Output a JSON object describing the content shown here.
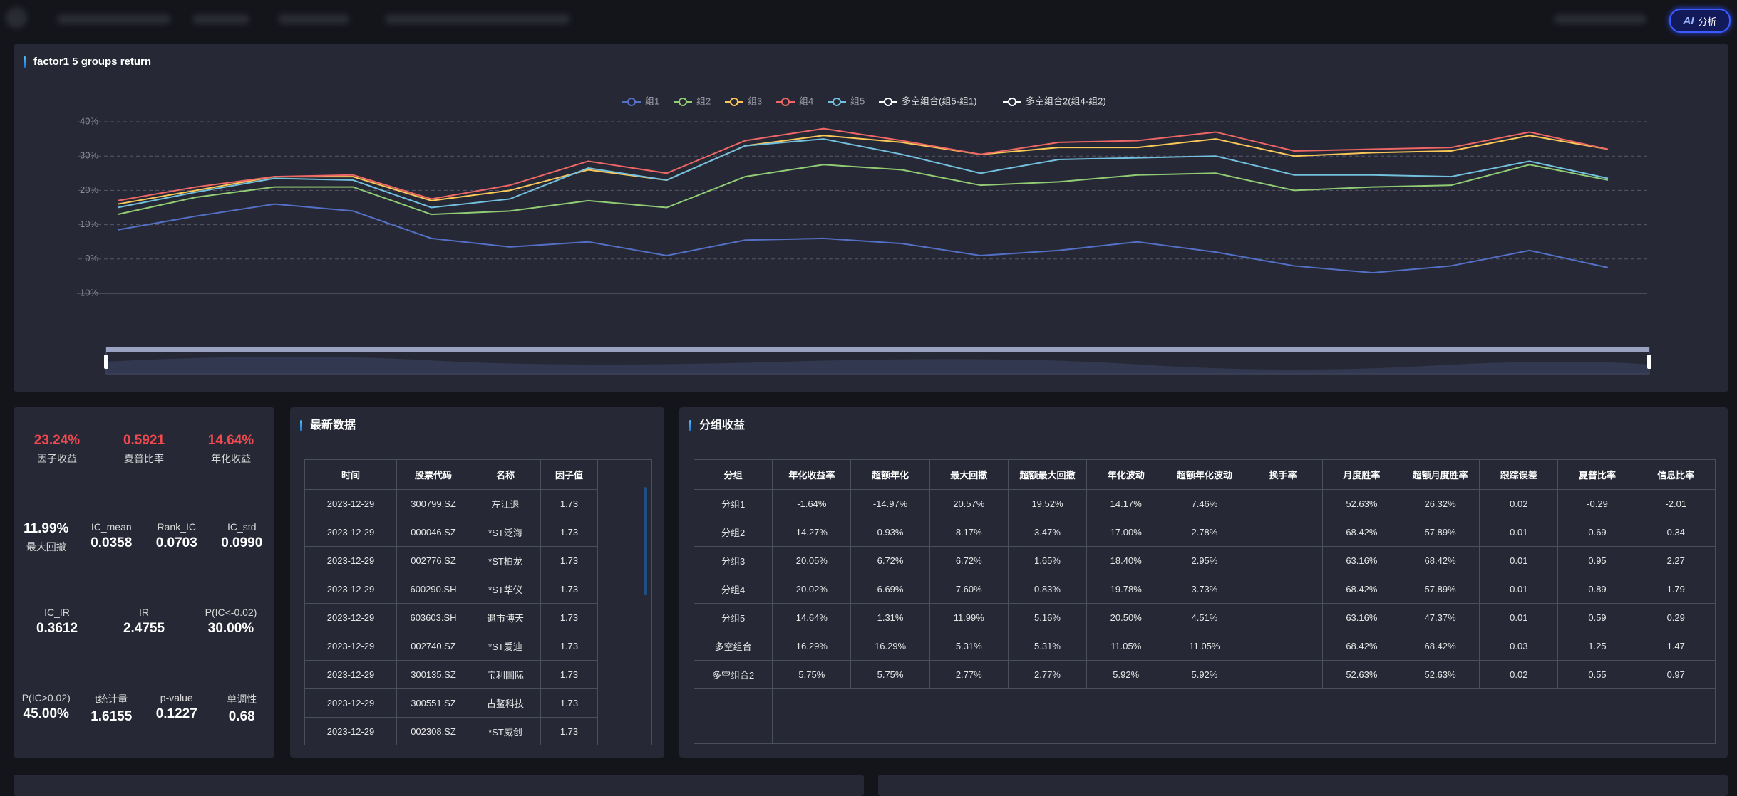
{
  "header": {
    "ai_icon": "AI",
    "ai_button": "分析"
  },
  "chart_data": {
    "type": "line",
    "title": "factor1 5 groups return",
    "categories": [
      null,
      null,
      null,
      null,
      null,
      null,
      null,
      null,
      null,
      null,
      null,
      null,
      null,
      null,
      null,
      null,
      null,
      null,
      null,
      null
    ],
    "series": [
      {
        "name": "组1",
        "color": "#5470c6",
        "values": [
          8.5,
          12.5,
          16,
          14,
          6,
          3.5,
          5,
          1,
          5.5,
          6,
          4.5,
          1,
          2.5,
          5,
          2,
          -2,
          -4,
          -2,
          2.5,
          -2.5
        ]
      },
      {
        "name": "组2",
        "color": "#91cc75",
        "values": [
          13,
          18,
          21,
          21,
          13,
          14,
          17,
          15,
          24,
          27.5,
          26,
          21.5,
          22.5,
          24.5,
          25,
          20,
          21,
          21.5,
          27.5,
          23
        ]
      },
      {
        "name": "组3",
        "color": "#fac858",
        "values": [
          16,
          20,
          24,
          24,
          17,
          20,
          26,
          23,
          33,
          36,
          34,
          30.5,
          32.5,
          32.5,
          35,
          30,
          31,
          31.5,
          36,
          32
        ]
      },
      {
        "name": "组4",
        "color": "#ee6666",
        "values": [
          17,
          21,
          24,
          24.5,
          17.5,
          21.5,
          28.5,
          25,
          34.5,
          38,
          34.5,
          30.5,
          34,
          34.5,
          37,
          31.5,
          32,
          32.5,
          37,
          32
        ]
      },
      {
        "name": "组5",
        "color": "#73c0de",
        "values": [
          15,
          19.5,
          23.5,
          23,
          15,
          17.5,
          26.5,
          23,
          33,
          35,
          30.5,
          25,
          29,
          29.5,
          30,
          24.5,
          24.5,
          24,
          28.5,
          23.5
        ]
      }
    ],
    "legend_extra": [
      {
        "name": "多空组合(组5-组1)",
        "color": "#ffffff"
      },
      {
        "name": "多空组合2(组4-组2)",
        "color": "#ffffff"
      }
    ],
    "ylim": [
      -10,
      40
    ],
    "yticks": [
      {
        "value": -10,
        "label": "-10%"
      },
      {
        "value": 0,
        "label": "0%"
      },
      {
        "value": 10,
        "label": "10%"
      },
      {
        "value": 20,
        "label": "20%"
      },
      {
        "value": 30,
        "label": "30%"
      },
      {
        "value": 40,
        "label": "40%"
      }
    ],
    "grid": true
  },
  "stats": {
    "rows": [
      [
        {
          "value": "23.24%",
          "label": "因子收益",
          "highlight": true,
          "value_first": true
        },
        {
          "value": "0.5921",
          "label": "夏普比率",
          "highlight": true,
          "value_first": true
        },
        {
          "value": "14.64%",
          "label": "年化收益",
          "highlight": true,
          "value_first": true
        }
      ],
      [
        {
          "value": "11.99%",
          "label": "最大回撤",
          "value_first": true
        },
        {
          "value": "0.0358",
          "label": "IC_mean"
        },
        {
          "value": "0.0703",
          "label": "Rank_IC"
        },
        {
          "value": "0.0990",
          "label": "IC_std"
        }
      ],
      [
        {
          "value": "0.3612",
          "label": "IC_IR"
        },
        {
          "value": "2.4755",
          "label": "IR"
        },
        {
          "value": "30.00%",
          "label": "P(IC<-0.02)"
        }
      ],
      [
        {
          "value": "45.00%",
          "label": "P(IC>0.02)"
        },
        {
          "value": "1.6155",
          "label": "t统计量"
        },
        {
          "value": "0.1227",
          "label": "p-value"
        },
        {
          "value": "0.68",
          "label": "单调性"
        }
      ]
    ]
  },
  "latest": {
    "title": "最新数据",
    "columns": [
      "时间",
      "股票代码",
      "名称",
      "因子值"
    ],
    "rows": [
      [
        "2023-12-29",
        "300799.SZ",
        "左江退",
        "1.73"
      ],
      [
        "2023-12-29",
        "000046.SZ",
        "*ST泛海",
        "1.73"
      ],
      [
        "2023-12-29",
        "002776.SZ",
        "*ST柏龙",
        "1.73"
      ],
      [
        "2023-12-29",
        "600290.SH",
        "*ST华仪",
        "1.73"
      ],
      [
        "2023-12-29",
        "603603.SH",
        "退市博天",
        "1.73"
      ],
      [
        "2023-12-29",
        "002740.SZ",
        "*ST爱迪",
        "1.73"
      ],
      [
        "2023-12-29",
        "300135.SZ",
        "宝利国际",
        "1.73"
      ],
      [
        "2023-12-29",
        "300551.SZ",
        "古鳌科技",
        "1.73"
      ],
      [
        "2023-12-29",
        "002308.SZ",
        "*ST威创",
        "1.73"
      ]
    ]
  },
  "group_returns": {
    "title": "分组收益",
    "columns": [
      "分组",
      "年化收益率",
      "超额年化",
      "最大回撤",
      "超额最大回撤",
      "年化波动",
      "超额年化波动",
      "换手率",
      "月度胜率",
      "超额月度胜率",
      "跟踪误差",
      "夏普比率",
      "信息比率"
    ],
    "rows": [
      [
        "分组1",
        "-1.64%",
        "-14.97%",
        "20.57%",
        "19.52%",
        "14.17%",
        "7.46%",
        null,
        "52.63%",
        "26.32%",
        "0.02",
        "-0.29",
        "-2.01"
      ],
      [
        "分组2",
        "14.27%",
        "0.93%",
        "8.17%",
        "3.47%",
        "17.00%",
        "2.78%",
        null,
        "68.42%",
        "57.89%",
        "0.01",
        "0.69",
        "0.34"
      ],
      [
        "分组3",
        "20.05%",
        "6.72%",
        "6.72%",
        "1.65%",
        "18.40%",
        "2.95%",
        null,
        "63.16%",
        "68.42%",
        "0.01",
        "0.95",
        "2.27"
      ],
      [
        "分组4",
        "20.02%",
        "6.69%",
        "7.60%",
        "0.83%",
        "19.78%",
        "3.73%",
        null,
        "68.42%",
        "57.89%",
        "0.01",
        "0.89",
        "1.79"
      ],
      [
        "分组5",
        "14.64%",
        "1.31%",
        "11.99%",
        "5.16%",
        "20.50%",
        "4.51%",
        null,
        "63.16%",
        "47.37%",
        "0.01",
        "0.59",
        "0.29"
      ],
      [
        "多空组合",
        "16.29%",
        "16.29%",
        "5.31%",
        "5.31%",
        "11.05%",
        "11.05%",
        null,
        "68.42%",
        "68.42%",
        "0.03",
        "1.25",
        "1.47"
      ],
      [
        "多空组合2",
        "5.75%",
        "5.75%",
        "2.77%",
        "2.77%",
        "5.92%",
        "5.92%",
        null,
        "52.63%",
        "52.63%",
        "0.02",
        "0.55",
        "0.97"
      ]
    ]
  }
}
